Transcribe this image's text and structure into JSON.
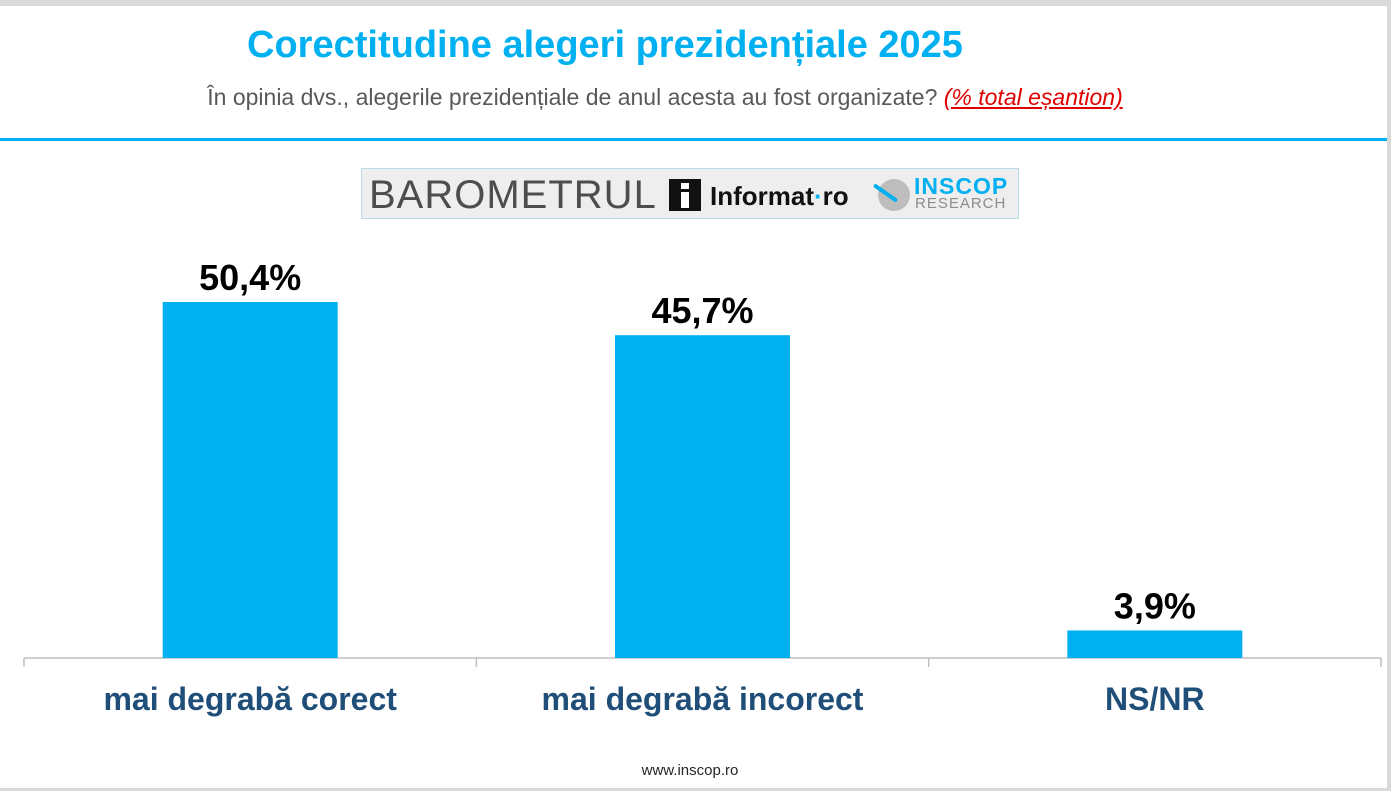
{
  "header": {
    "title": "Corectitudine alegeri prezidențiale 2025",
    "subtitle": "În opinia dvs., alegerile prezidențiale de anul acesta au fost organizate?",
    "subtitle_note": "(% total eșantion)"
  },
  "logos": {
    "barometrul": "BAROMETRUL",
    "informat": "Informat",
    "informat_sep": "·",
    "informat_tld": "ro",
    "inscop": "INSCOP",
    "research": "RESEARCH"
  },
  "chart_data": {
    "type": "bar",
    "categories": [
      "mai degrabă corect",
      "mai degrabă incorect",
      "NS/NR"
    ],
    "values": [
      50.4,
      45.7,
      3.9
    ],
    "value_labels": [
      "50,4%",
      "45,7%",
      "3,9%"
    ],
    "ylim": [
      0,
      55
    ],
    "grid": false,
    "legend": "none",
    "colors": {
      "bar": "#00b0f0",
      "category_label": "#1f4e79",
      "value_label": "#000000",
      "title": "#00b0f0"
    }
  },
  "footer": {
    "url": "www.inscop.ro"
  }
}
